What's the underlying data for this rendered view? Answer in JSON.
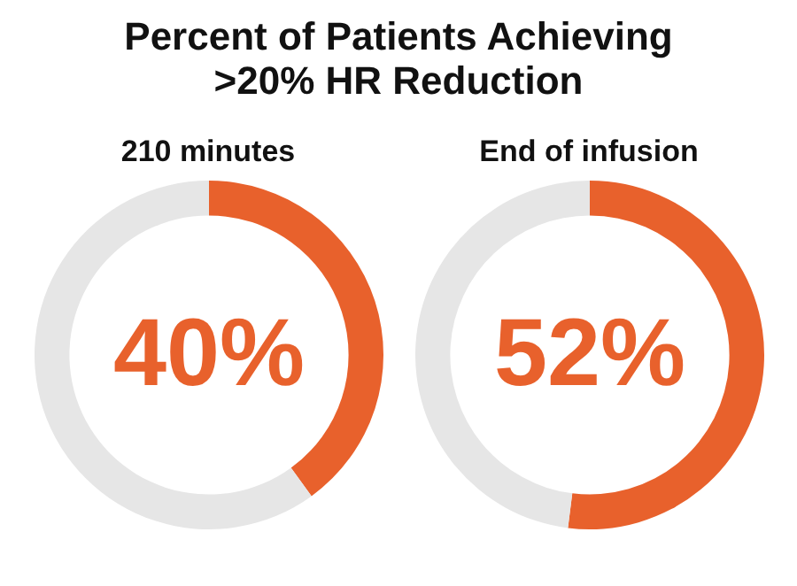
{
  "chart_data": [
    {
      "type": "other",
      "title": "Percent of Patients Achieving\n>20% HR Reduction"
    },
    {
      "type": "donut",
      "title": "210 minutes",
      "categories": [
        null,
        null
      ],
      "values": [
        40,
        60
      ],
      "colors": [
        "#e8612c",
        "#e6e6e6"
      ],
      "value_labels": [
        "40%",
        null
      ],
      "legend": false
    },
    {
      "type": "donut",
      "title": "End of infusion",
      "categories": [
        null,
        null
      ],
      "values": [
        52,
        48
      ],
      "colors": [
        "#e8612c",
        "#e6e6e6"
      ],
      "value_labels": [
        "52%",
        null
      ],
      "legend": false
    }
  ]
}
